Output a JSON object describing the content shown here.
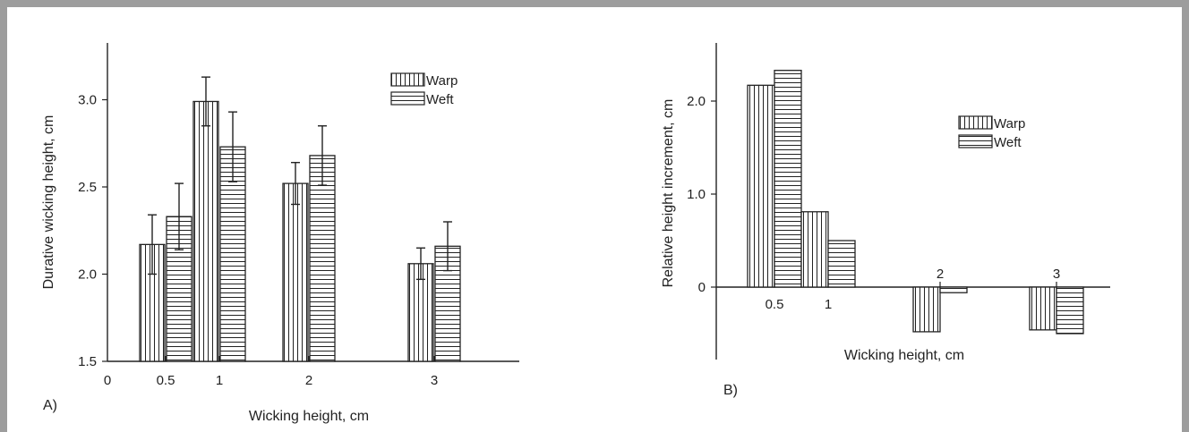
{
  "chart_data": [
    {
      "type": "bar",
      "panel_label": "A)",
      "xlabel": "Wicking height, cm",
      "ylabel": "Durative wicking height, cm",
      "x_origin_label": "0",
      "ylim": [
        1.5,
        3.3
      ],
      "yticks": [
        1.5,
        2.0,
        2.5,
        3.0
      ],
      "ytick_labels": [
        "1.5",
        "2.0",
        "2.5",
        "3.0"
      ],
      "categories": [
        "0.5",
        "1",
        "2",
        "3"
      ],
      "series": [
        {
          "name": "Warp",
          "values": [
            2.17,
            2.99,
            2.52,
            2.06
          ],
          "errors": [
            0.17,
            0.14,
            0.12,
            0.09
          ]
        },
        {
          "name": "Weft",
          "values": [
            2.33,
            2.73,
            2.68,
            2.16
          ],
          "errors": [
            0.19,
            0.2,
            0.17,
            0.14
          ]
        }
      ],
      "legend_position": "top-right",
      "grid": false
    },
    {
      "type": "bar",
      "panel_label": "B)",
      "xlabel": "Wicking height, cm",
      "ylabel": "Relative height increment, cm",
      "ylim": [
        -0.85,
        2.6
      ],
      "yticks": [
        0,
        1.0,
        2.0
      ],
      "ytick_labels": [
        "0",
        "1.0",
        "2.0"
      ],
      "categories": [
        "0.5",
        "1",
        "2",
        "3"
      ],
      "series": [
        {
          "name": "Warp",
          "values": [
            2.17,
            0.81,
            -0.48,
            -0.46
          ]
        },
        {
          "name": "Weft",
          "values": [
            2.33,
            0.5,
            -0.06,
            -0.5
          ]
        }
      ],
      "legend_position": "top-right",
      "grid": false
    }
  ]
}
